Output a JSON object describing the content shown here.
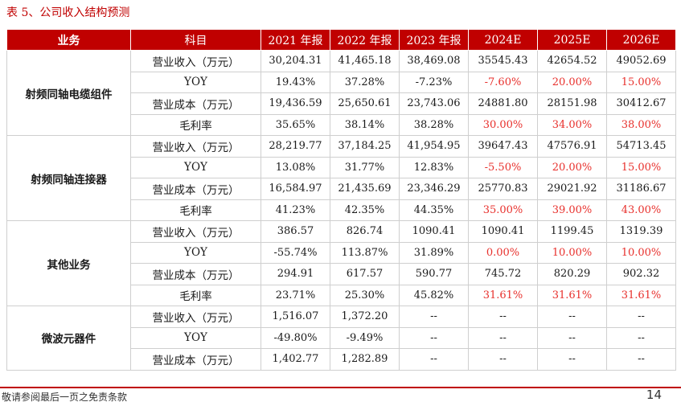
{
  "caption": "表 5、公司收入结构预测",
  "headers": [
    "业务",
    "科目",
    "2021 年报",
    "2022 年报",
    "2023 年报",
    "2024E",
    "2025E",
    "2026E"
  ],
  "segments": [
    {
      "name": "射频同轴电缆组件",
      "rows": [
        {
          "item": "营业收入（万元）",
          "values": [
            "30,204.31",
            "41,465.18",
            "38,469.08",
            "35545.43",
            "42654.52",
            "49052.69"
          ],
          "est_highlight": false
        },
        {
          "item": "YOY",
          "values": [
            "19.43%",
            "37.28%",
            "-7.23%",
            "-7.60%",
            "20.00%",
            "15.00%"
          ],
          "est_highlight": true
        },
        {
          "item": "营业成本（万元）",
          "values": [
            "19,436.59",
            "25,650.61",
            "23,743.06",
            "24881.80",
            "28151.98",
            "30412.67"
          ],
          "est_highlight": false
        },
        {
          "item": "毛利率",
          "values": [
            "35.65%",
            "38.14%",
            "38.28%",
            "30.00%",
            "34.00%",
            "38.00%"
          ],
          "est_highlight": true
        }
      ]
    },
    {
      "name": "射频同轴连接器",
      "rows": [
        {
          "item": "营业收入（万元）",
          "values": [
            "28,219.77",
            "37,184.25",
            "41,954.95",
            "39647.43",
            "47576.91",
            "54713.45"
          ],
          "est_highlight": false
        },
        {
          "item": "YOY",
          "values": [
            "13.08%",
            "31.77%",
            "12.83%",
            "-5.50%",
            "20.00%",
            "15.00%"
          ],
          "est_highlight": true
        },
        {
          "item": "营业成本（万元）",
          "values": [
            "16,584.97",
            "21,435.69",
            "23,346.29",
            "25770.83",
            "29021.92",
            "31186.67"
          ],
          "est_highlight": false
        },
        {
          "item": "毛利率",
          "values": [
            "41.23%",
            "42.35%",
            "44.35%",
            "35.00%",
            "39.00%",
            "43.00%"
          ],
          "est_highlight": true
        }
      ]
    },
    {
      "name": "其他业务",
      "rows": [
        {
          "item": "营业收入（万元）",
          "values": [
            "386.57",
            "826.74",
            "1090.41",
            "1090.41",
            "1199.45",
            "1319.39"
          ],
          "est_highlight": false
        },
        {
          "item": "YOY",
          "values": [
            "-55.74%",
            "113.87%",
            "31.89%",
            "0.00%",
            "10.00%",
            "10.00%"
          ],
          "est_highlight": true
        },
        {
          "item": "营业成本（万元）",
          "values": [
            "294.91",
            "617.57",
            "590.77",
            "745.72",
            "820.29",
            "902.32"
          ],
          "est_highlight": false
        },
        {
          "item": "毛利率",
          "values": [
            "23.71%",
            "25.30%",
            "45.82%",
            "31.61%",
            "31.61%",
            "31.61%"
          ],
          "est_highlight": true
        }
      ]
    },
    {
      "name": "微波元器件",
      "rows": [
        {
          "item": "营业收入（万元）",
          "values": [
            "1,516.07",
            "1,372.20",
            "--",
            "--",
            "--",
            "--"
          ],
          "est_highlight": false
        },
        {
          "item": "YOY",
          "values": [
            "-49.80%",
            "-9.49%",
            "--",
            "--",
            "--",
            "--"
          ],
          "est_highlight": false
        },
        {
          "item": "营业成本（万元）",
          "values": [
            "1,402.77",
            "1,282.89",
            "--",
            "--",
            "--",
            "--"
          ],
          "est_highlight": false
        }
      ]
    }
  ],
  "footer": {
    "disclaimer": "敬请参阅最后一页之免责条款",
    "page_number": "14"
  },
  "colors": {
    "header_bg": "#c00000",
    "estimate_text": "#e8302c",
    "rule": "#c00000"
  }
}
